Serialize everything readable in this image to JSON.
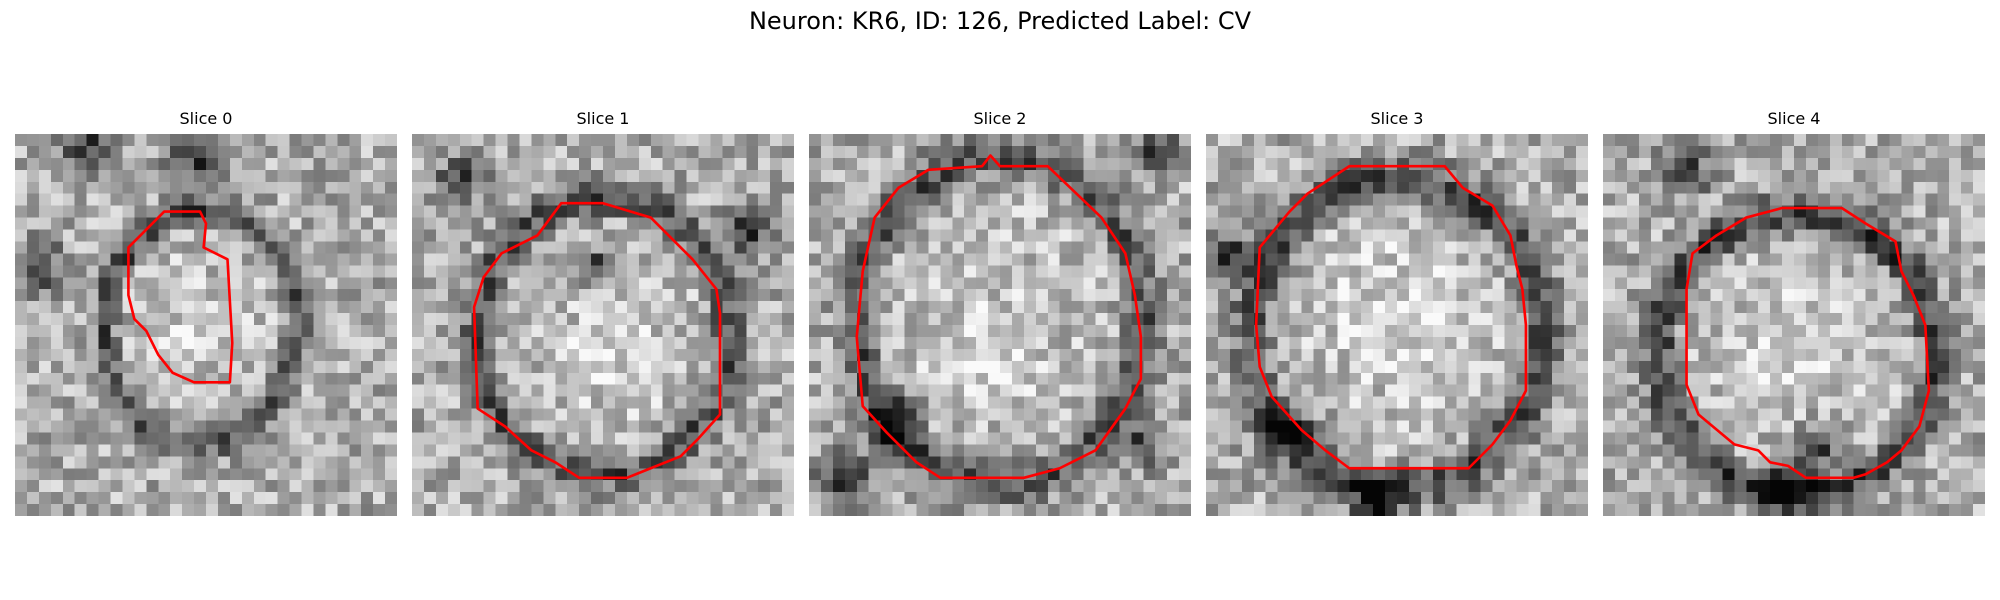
{
  "figure": {
    "title": "Neuron: KR6, ID: 126, Predicted Label: CV",
    "contour_color": "#ff0000",
    "colormap": "grayscale",
    "grid": 32,
    "panels": [
      {
        "title": "Slice 0",
        "seed": 11,
        "ring": {
          "cx": 15.5,
          "cy": 16.2,
          "rx": 7.6,
          "ry": 9.2,
          "strength": 0.9
        },
        "dark_spots": [
          [
            15,
            2,
            2.2
          ],
          [
            6,
            1,
            2.0
          ],
          [
            2,
            11,
            2.0
          ]
        ],
        "bright_spots": [
          [
            16,
            16,
            3.0
          ]
        ],
        "contour": [
          [
            12.5,
            6.5
          ],
          [
            15.5,
            6.5
          ],
          [
            16,
            7.5
          ],
          [
            15.8,
            9.5
          ],
          [
            17.8,
            10.5
          ],
          [
            18.2,
            17.5
          ],
          [
            18,
            20.8
          ],
          [
            15,
            20.8
          ],
          [
            13.2,
            20
          ],
          [
            12,
            18.5
          ],
          [
            11,
            16.5
          ],
          [
            10,
            15.5
          ],
          [
            9.5,
            13.5
          ],
          [
            9.5,
            9.5
          ],
          [
            11.5,
            7.5
          ]
        ]
      },
      {
        "title": "Slice 1",
        "seed": 23,
        "ring": {
          "cx": 16.0,
          "cy": 17.0,
          "rx": 10.0,
          "ry": 11.0,
          "strength": 0.85
        },
        "dark_spots": [
          [
            15.5,
            11,
            1.4
          ],
          [
            4,
            4,
            2.0
          ],
          [
            28,
            8,
            2.0
          ]
        ],
        "bright_spots": [
          [
            17,
            18.5,
            4.0
          ]
        ],
        "contour": [
          [
            10.5,
            8.5
          ],
          [
            12.5,
            5.8
          ],
          [
            16,
            5.8
          ],
          [
            20,
            7
          ],
          [
            23.5,
            10.5
          ],
          [
            25.5,
            13
          ],
          [
            25.8,
            15
          ],
          [
            25.8,
            23.5
          ],
          [
            24,
            25.5
          ],
          [
            22.5,
            27
          ],
          [
            20,
            28
          ],
          [
            18,
            28.8
          ],
          [
            14,
            28.8
          ],
          [
            12,
            27.5
          ],
          [
            10,
            26.5
          ],
          [
            7.8,
            24.5
          ],
          [
            5.5,
            23
          ],
          [
            5.2,
            14.5
          ],
          [
            6,
            12
          ],
          [
            7.5,
            10
          ]
        ]
      },
      {
        "title": "Slice 2",
        "seed": 37,
        "ring": {
          "cx": 16.0,
          "cy": 15.6,
          "rx": 11.3,
          "ry": 13.0,
          "strength": 0.85
        },
        "dark_spots": [
          [
            7,
            24,
            2.2
          ],
          [
            3,
            29,
            2.5
          ],
          [
            29,
            1,
            1.8
          ],
          [
            28,
            26,
            1.8
          ]
        ],
        "bright_spots": [
          [
            15,
            18,
            4.5
          ]
        ],
        "contour": [
          [
            15.2,
            1.8
          ],
          [
            16,
            2.7
          ],
          [
            20,
            2.7
          ],
          [
            24.5,
            7
          ],
          [
            26.5,
            10
          ],
          [
            27.3,
            13.5
          ],
          [
            27.8,
            17
          ],
          [
            27.8,
            20.5
          ],
          [
            26.5,
            23
          ],
          [
            24,
            26.5
          ],
          [
            21,
            28
          ],
          [
            18,
            28.8
          ],
          [
            11,
            28.8
          ],
          [
            9,
            27.5
          ],
          [
            6.5,
            25
          ],
          [
            4.5,
            22.8
          ],
          [
            4,
            17
          ],
          [
            4.5,
            11.5
          ],
          [
            5.5,
            7
          ],
          [
            7.5,
            4.5
          ],
          [
            10,
            3
          ],
          [
            14.5,
            2.7
          ]
        ]
      },
      {
        "title": "Slice 3",
        "seed": 41,
        "ring": {
          "cx": 16.0,
          "cy": 16.7,
          "rx": 11.6,
          "ry": 12.3,
          "strength": 0.95
        },
        "dark_spots": [
          [
            2,
            10,
            2.0
          ],
          [
            7,
            25,
            2.3
          ],
          [
            14,
            31,
            2.0
          ]
        ],
        "bright_spots": [
          [
            16,
            15,
            6.0
          ]
        ],
        "contour": [
          [
            7,
            6.5
          ],
          [
            8.5,
            5
          ],
          [
            12,
            2.7
          ],
          [
            20,
            2.7
          ],
          [
            21.5,
            4.5
          ],
          [
            24,
            6
          ],
          [
            25.5,
            8.5
          ],
          [
            26,
            11
          ],
          [
            26.5,
            13
          ],
          [
            26.8,
            16
          ],
          [
            26.8,
            21.5
          ],
          [
            25.5,
            24
          ],
          [
            24,
            26
          ],
          [
            22,
            28
          ],
          [
            12,
            28
          ],
          [
            10,
            26.5
          ],
          [
            8,
            24.8
          ],
          [
            5.5,
            22
          ],
          [
            4.5,
            19.5
          ],
          [
            4.2,
            16
          ],
          [
            4.5,
            9.5
          ]
        ]
      },
      {
        "title": "Slice 4",
        "seed": 53,
        "ring": {
          "cx": 16.2,
          "cy": 18.5,
          "rx": 11.0,
          "ry": 11.2,
          "strength": 1.0
        },
        "dark_spots": [
          [
            15.5,
            29,
            2.2
          ],
          [
            7,
            3,
            2.0
          ],
          [
            18,
            26,
            2.0
          ]
        ],
        "bright_spots": [
          [
            16,
            18,
            5.5
          ]
        ],
        "contour": [
          [
            7.5,
            10
          ],
          [
            9.5,
            8.5
          ],
          [
            12,
            7
          ],
          [
            15,
            6.2
          ],
          [
            20,
            6.2
          ],
          [
            22,
            7.5
          ],
          [
            24.5,
            9
          ],
          [
            25,
            11.5
          ],
          [
            26,
            13.5
          ],
          [
            27,
            16
          ],
          [
            27.3,
            21.5
          ],
          [
            26.5,
            24.5
          ],
          [
            25,
            26.5
          ],
          [
            23.8,
            27.5
          ],
          [
            22,
            28.5
          ],
          [
            21,
            28.8
          ],
          [
            17,
            28.8
          ],
          [
            15.5,
            27.8
          ],
          [
            14,
            27.5
          ],
          [
            13,
            26.5
          ],
          [
            11,
            26
          ],
          [
            8,
            23.5
          ],
          [
            7,
            21
          ],
          [
            7,
            13
          ]
        ]
      }
    ]
  }
}
